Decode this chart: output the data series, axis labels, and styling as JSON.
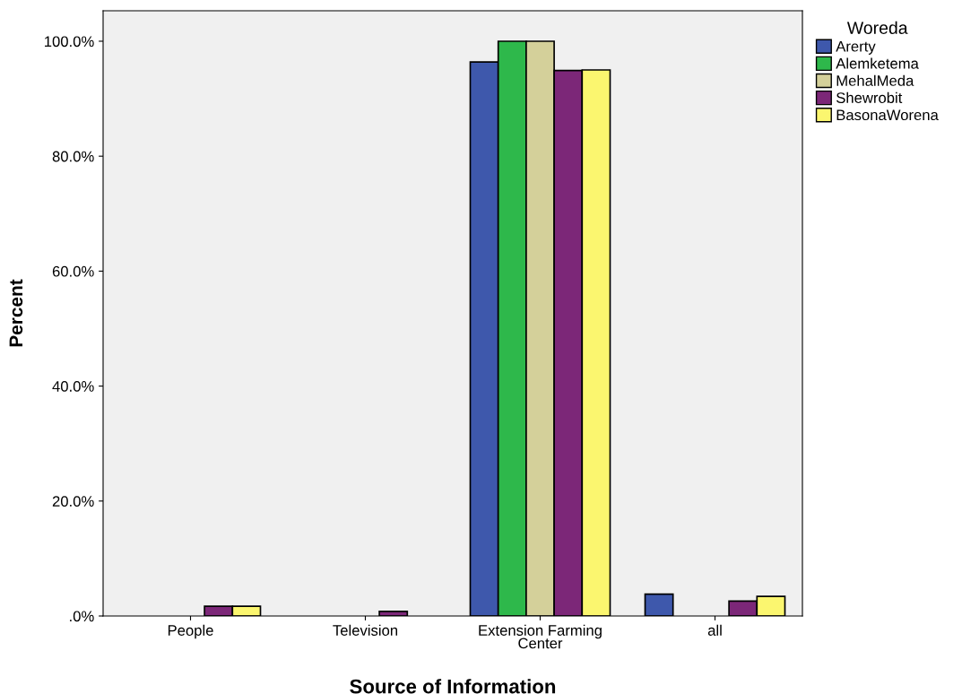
{
  "chart_data": {
    "type": "bar",
    "xlabel": "Source of Information",
    "ylabel": "Percent",
    "legend_title": "Woreda",
    "categories": [
      "People",
      "Television",
      "Extension Farming\nCenter",
      "all"
    ],
    "series": [
      {
        "name": "Arerty",
        "color": "#3e58ac",
        "values": [
          0,
          0,
          96.4,
          3.8
        ]
      },
      {
        "name": "Alemketema",
        "color": "#2eb84b",
        "values": [
          0,
          0,
          100,
          0
        ]
      },
      {
        "name": "MehalMeda",
        "color": "#d4d09a",
        "values": [
          0,
          0,
          100,
          0
        ]
      },
      {
        "name": "Shewrobit",
        "color": "#7c2778",
        "values": [
          1.7,
          0.8,
          94.9,
          2.6
        ]
      },
      {
        "name": "BasonaWorena",
        "color": "#fbf66f",
        "values": [
          1.7,
          0,
          95.0,
          3.4
        ]
      }
    ],
    "ylim": [
      0,
      105.3
    ],
    "yticks": [
      {
        "value": 0,
        "label": ".0%"
      },
      {
        "value": 20,
        "label": "20.0%"
      },
      {
        "value": 40,
        "label": "40.0%"
      },
      {
        "value": 60,
        "label": "60.0%"
      },
      {
        "value": 80,
        "label": "80.0%"
      },
      {
        "value": 100,
        "label": "100.0%"
      }
    ],
    "grid": false,
    "legend": "right"
  }
}
